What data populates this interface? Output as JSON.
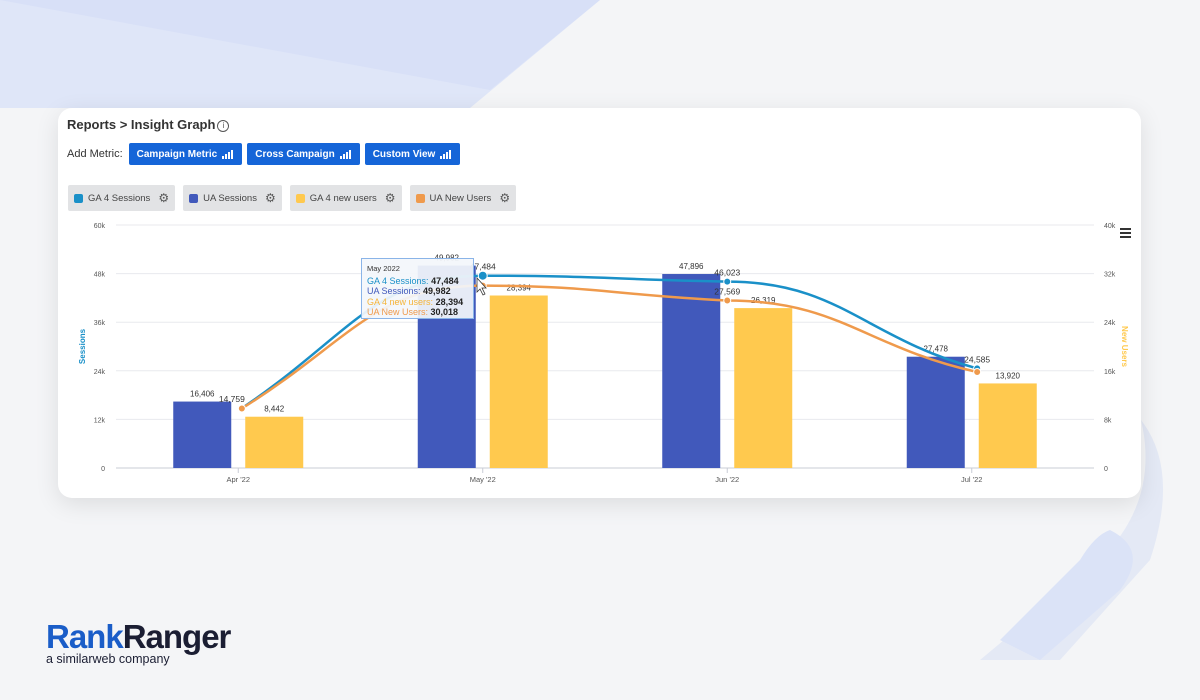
{
  "header": {
    "breadcrumb": "Reports > Insight Graph",
    "info_icon": "info-icon"
  },
  "toolbar": {
    "add_metric_label": "Add Metric:",
    "buttons": [
      {
        "label": "Campaign Metric",
        "icon": "bar-chart-icon"
      },
      {
        "label": "Cross Campaign",
        "icon": "bar-chart-icon"
      },
      {
        "label": "Custom View",
        "icon": "bar-chart-icon"
      }
    ]
  },
  "legend": [
    {
      "label": "GA 4 Sessions",
      "color": "#1a90c8"
    },
    {
      "label": "UA Sessions",
      "color": "#4159bb"
    },
    {
      "label": "GA 4 new users",
      "color": "#ffc94e"
    },
    {
      "label": "UA New Users",
      "color": "#ef9a4c"
    }
  ],
  "tooltip": {
    "date": "May 2022",
    "rows": [
      {
        "label": "GA 4 Sessions:",
        "value": "47,484",
        "color": "#1a90c8"
      },
      {
        "label": "UA Sessions:",
        "value": "49,982",
        "color": "#4159bb"
      },
      {
        "label": "GA 4 new users:",
        "value": "28,394",
        "color": "#f5b53a"
      },
      {
        "label": "UA New Users:",
        "value": "30,018",
        "color": "#ef9a4c"
      }
    ]
  },
  "chart_data": {
    "type": "bar",
    "categories": [
      "Apr '22",
      "May '22",
      "Jun '22",
      "Jul '22"
    ],
    "ylabel": "Sessions",
    "y2label": "New Users",
    "ylim": [
      0,
      60000
    ],
    "y2lim": [
      0,
      40000
    ],
    "yticks": [
      "0",
      "12k",
      "24k",
      "36k",
      "48k",
      "60k"
    ],
    "y2ticks": [
      "0",
      "8k",
      "16k",
      "24k",
      "32k",
      "40k"
    ],
    "series": [
      {
        "name": "UA Sessions",
        "kind": "bar",
        "axis": "left",
        "color": "#4159bb",
        "values": [
          16406,
          49982,
          47896,
          27478
        ],
        "labels": [
          "16,406",
          "49,982",
          "47,896",
          "27,478"
        ]
      },
      {
        "name": "GA 4 new users",
        "kind": "bar",
        "axis": "right",
        "color": "#ffc94e",
        "values": [
          8442,
          28394,
          26319,
          13920
        ],
        "labels": [
          "8,442",
          "28,394",
          "26,319",
          "13,920"
        ]
      },
      {
        "name": "GA 4 Sessions",
        "kind": "line",
        "axis": "left",
        "color": "#1a90c8",
        "values": [
          14759,
          47484,
          46023,
          24585
        ],
        "labels": [
          "14,759",
          "47,484",
          "46,023",
          "24,585"
        ]
      },
      {
        "name": "UA New Users",
        "kind": "line",
        "axis": "right",
        "color": "#ef9a4c",
        "values": [
          9800,
          30018,
          27569,
          15800
        ],
        "labels": [
          "",
          "",
          "27,569",
          ""
        ]
      }
    ],
    "grid": true,
    "legend_position": "top-left"
  },
  "branding": {
    "logo_part1": "Rank",
    "logo_part2": "Ranger",
    "tagline": "a similarweb company"
  }
}
